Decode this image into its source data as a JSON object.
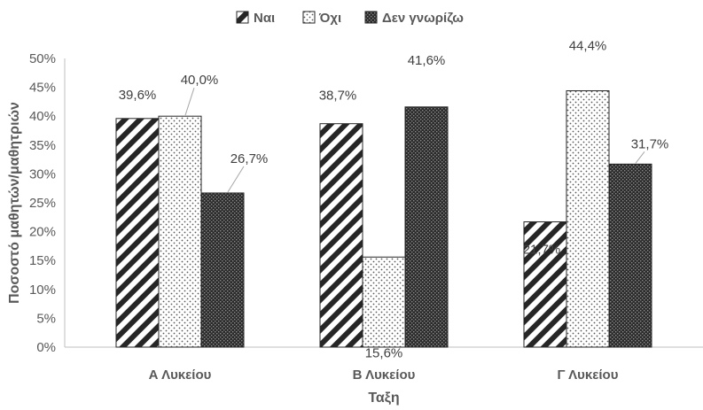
{
  "chart_data": {
    "type": "bar",
    "categories": [
      "Α Λυκείου",
      "Β Λυκείου",
      "Γ Λυκείου"
    ],
    "series": [
      {
        "name": "Ναι",
        "values": [
          39.6,
          38.7,
          21.7
        ],
        "labels": [
          "39,6%",
          "38,7%",
          "21,7%"
        ],
        "pattern": "diagonal-stripes"
      },
      {
        "name": "Όχι",
        "values": [
          40.0,
          15.6,
          44.4
        ],
        "labels": [
          "40,0%",
          "15,6%",
          "44,4%"
        ],
        "pattern": "sparse-dots"
      },
      {
        "name": "Δεν γνωρίζω",
        "values": [
          26.7,
          41.6,
          31.7
        ],
        "labels": [
          "26,7%",
          "41,6%",
          "31,7%"
        ],
        "pattern": "dense-dots"
      }
    ],
    "xlabel": "Ταξη",
    "ylabel": "Ποσοστό μαθητών/μαθητριών",
    "ylim": [
      0,
      50
    ],
    "yticks": [
      "0%",
      "5%",
      "10%",
      "15%",
      "20%",
      "25%",
      "30%",
      "35%",
      "40%",
      "45%",
      "50%"
    ],
    "legend_position": "top-center",
    "grid": false
  }
}
